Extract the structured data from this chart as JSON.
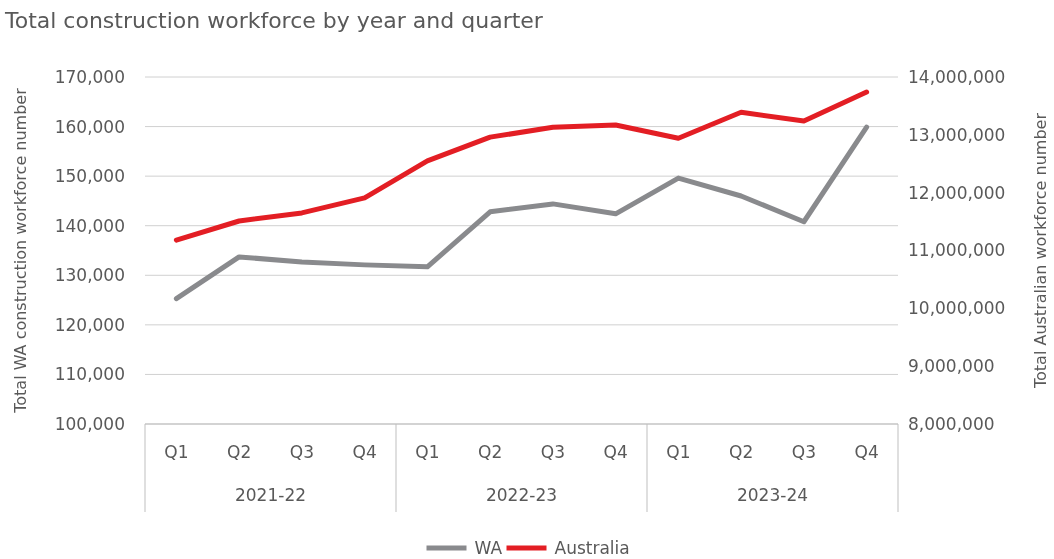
{
  "chart_data": {
    "type": "line",
    "title": "Total construction workforce by year and quarter",
    "xlabel": null,
    "ylabel": "Total WA construction workforce number",
    "y2label": "Total Australian workforce number",
    "categories": [
      "Q1",
      "Q2",
      "Q3",
      "Q4",
      "Q1",
      "Q2",
      "Q3",
      "Q4",
      "Q1",
      "Q2",
      "Q3",
      "Q4"
    ],
    "annotations": [
      "2021-22",
      "2022-23",
      "2023-24"
    ],
    "series": [
      {
        "name": "WA",
        "color": "#898a8d",
        "values": [
          125300,
          133700,
          132700,
          132100,
          131700,
          142800,
          144400,
          142400,
          149600,
          146000,
          140800,
          159900
        ]
      },
      {
        "name": "Australia",
        "color": "#e31e24",
        "axis": "y2",
        "values": [
          11180000,
          11510000,
          11650000,
          11910000,
          12550000,
          12960000,
          13130000,
          13170000,
          12940000,
          13390000,
          13240000,
          13740000
        ]
      }
    ],
    "ylim": [
      100000,
      170000
    ],
    "yticks": [
      {
        "value": 100000,
        "label": "100,000"
      },
      {
        "value": 110000,
        "label": "110,000"
      },
      {
        "value": 120000,
        "label": "120,000"
      },
      {
        "value": 130000,
        "label": "130,000"
      },
      {
        "value": 140000,
        "label": "140,000"
      },
      {
        "value": 150000,
        "label": "150,000"
      },
      {
        "value": 160000,
        "label": "160,000"
      },
      {
        "value": 170000,
        "label": "170,000"
      }
    ],
    "y2lim": [
      8000000,
      14000000
    ],
    "y2ticks": [
      {
        "value": 8000000,
        "label": "8,000,000"
      },
      {
        "value": 9000000,
        "label": "9,000,000"
      },
      {
        "value": 10000000,
        "label": "10,000,000"
      },
      {
        "value": 11000000,
        "label": "11,000,000"
      },
      {
        "value": 12000000,
        "label": "12,000,000"
      },
      {
        "value": 13000000,
        "label": "13,000,000"
      },
      {
        "value": 14000000,
        "label": "14,000,000"
      }
    ],
    "grid": "y",
    "legend": "bottom",
    "marker": "none",
    "line_style": "solid"
  }
}
